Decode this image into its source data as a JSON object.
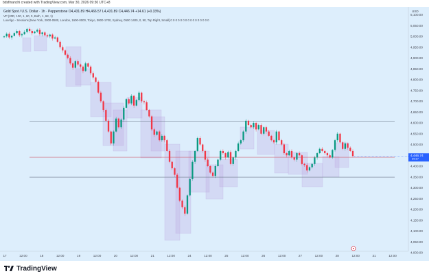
{
  "topbar": {
    "text": "bdsfinanchi created with TradingView.com, Mar 30, 2026 09:30 UTC+8"
  },
  "header": {
    "symbol_line": "Gold Spot / U.S. Dollar · 1h · Pepperstone  O4,431.89 H4,466.57 L4,431.89 C4,446.74 +14.61 (+0.33%)",
    "indicator_1": "VP (20D, 100, 1, 60, 0, Both, 1, 68, 1)",
    "indicator_2": "LuxAlgo - Sessions [New York, 2000-0500, London, 1600-0000, Tokyo, 0800-1700, Sydney, 0500 1400, 0, 90, Top Right, Small] 0 0 0 0 0 0 0 0 0 0 0 0 0 0 0 0"
  },
  "colors": {
    "chart_bg": "#ddeefc",
    "candle_up": "#089981",
    "candle_down": "#f23645",
    "session_box": "#b9a4e0",
    "hline_dark": "#6f7a8e",
    "hline_red": "#d06070",
    "price_tag": "#2962ff"
  },
  "price_axis": {
    "currency": "USD",
    "ticks": [
      "5,100.00",
      "5,050.00",
      "5,000.00",
      "4,950.00",
      "4,900.00",
      "4,850.00",
      "4,800.00",
      "4,750.00",
      "4,700.00",
      "4,650.00",
      "4,600.00",
      "4,550.00",
      "4,500.00",
      "4,450.00",
      "4,400.00",
      "4,350.00",
      "4,300.00",
      "4,250.00",
      "4,200.00",
      "4,150.00",
      "4,100.00",
      "4,050.00",
      "4,000.00"
    ],
    "tick_values": [
      5100,
      5050,
      5000,
      4950,
      4900,
      4850,
      4800,
      4750,
      4700,
      4650,
      4600,
      4550,
      4500,
      4450,
      4400,
      4350,
      4300,
      4250,
      4200,
      4150,
      4100,
      4050,
      4000
    ],
    "last_price_label": "4,446.74",
    "countdown_label": "29:17"
  },
  "time_axis": {
    "ticks": [
      "17",
      "12:00",
      "18",
      "12:00",
      "19",
      "12:00",
      "20",
      "12:00",
      "21",
      "12:00",
      "24",
      "12:00",
      "25",
      "12:00",
      "26",
      "12:00",
      "27",
      "12:00",
      "28",
      "12:00",
      "31",
      "12:00"
    ]
  },
  "levels": {
    "upper": 4608,
    "middle": 4441,
    "lower": 4349
  },
  "footer": {
    "brand": "TradingView"
  },
  "chart_data": {
    "type": "candlestick",
    "series_name": "Gold Spot / U.S. Dollar",
    "ylim": [
      4000,
      5130
    ],
    "y_unit": "USD",
    "closes": [
      5000,
      5012,
      4995,
      5003,
      5015,
      5025,
      5005,
      5010,
      5020,
      5035,
      5025,
      5015,
      5022,
      5030,
      5010,
      5018,
      5005,
      5000,
      5008,
      4990,
      4995,
      4975,
      4950,
      4935,
      4915,
      4900,
      4875,
      4855,
      4885,
      4870,
      4860,
      4840,
      4875,
      4860,
      4830,
      4810,
      4790,
      4740,
      4700,
      4660,
      4610,
      4560,
      4505,
      4560,
      4620,
      4580,
      4615,
      4670,
      4710,
      4690,
      4725,
      4680,
      4705,
      4740,
      4700,
      4695,
      4660,
      4630,
      4570,
      4545,
      4560,
      4520,
      4540,
      4520,
      4470,
      4420,
      4390,
      4360,
      4300,
      4240,
      4210,
      4180,
      4265,
      4340,
      4420,
      4470,
      4530,
      4500,
      4470,
      4430,
      4400,
      4370,
      4355,
      4400,
      4430,
      4470,
      4460,
      4440,
      4465,
      4410,
      4440,
      4470,
      4505,
      4520,
      4560,
      4610,
      4590,
      4580,
      4600,
      4570,
      4590,
      4550,
      4580,
      4560,
      4540,
      4520,
      4510,
      4560,
      4520,
      4500,
      4460,
      4450,
      4470,
      4440,
      4430,
      4460,
      4450,
      4410,
      4405,
      4380,
      4395,
      4410,
      4440,
      4460,
      4480,
      4470,
      4460,
      4450,
      4440,
      4475,
      4520,
      4550,
      4510,
      4480,
      4505,
      4485,
      4470,
      4446.74
    ]
  }
}
